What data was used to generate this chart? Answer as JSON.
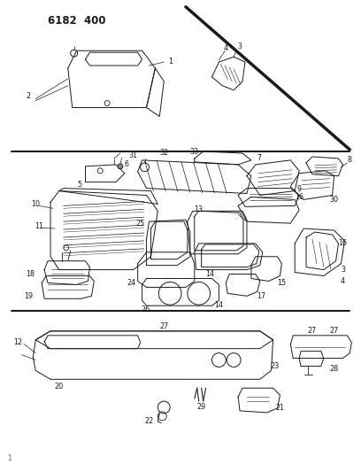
{
  "title": "6182 400",
  "bg_color": "#ffffff",
  "line_color": "#1a1a1a",
  "title_fontsize": 8.5,
  "label_fontsize": 6.0,
  "fig_width": 4.08,
  "fig_height": 5.33,
  "dpi": 100
}
